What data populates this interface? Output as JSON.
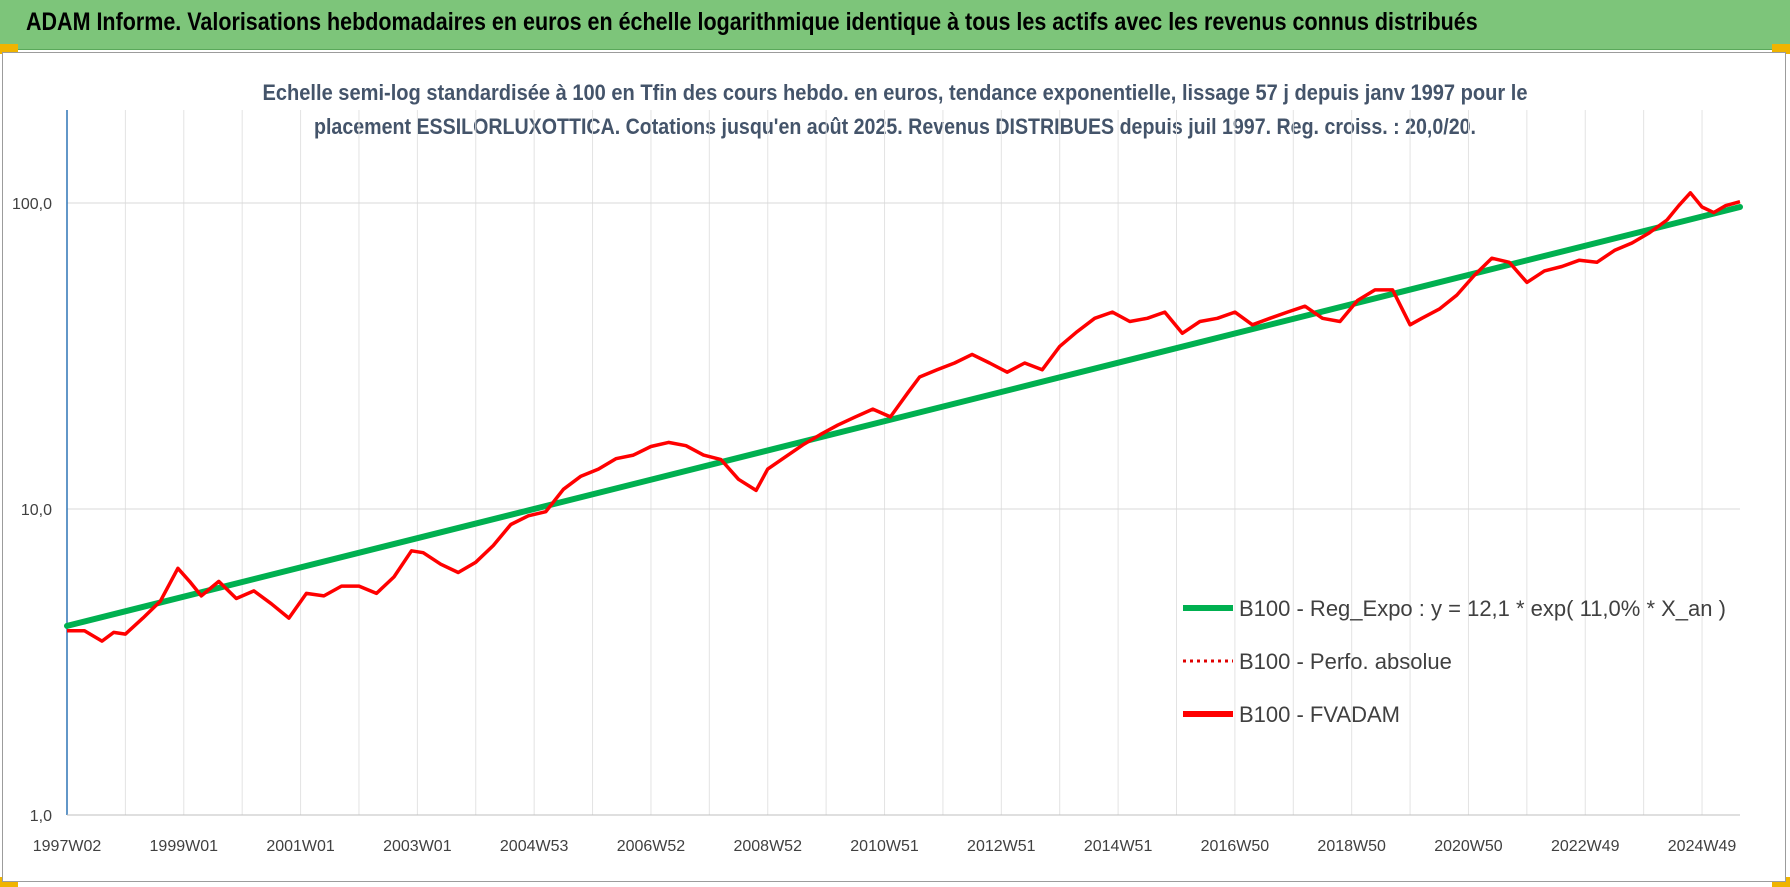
{
  "banner": {
    "title": "ADAM Informe. Valorisations hebdomadaires en euros en échelle logarithmique identique à tous les actifs avec les revenus connus distribués",
    "background": "#7dc57a",
    "corner_color": "#f0b400"
  },
  "chart_data": {
    "type": "line",
    "title_lines": [
      "Echelle semi-log standardisée à 100 en Tfin des cours hebdo. en euros, tendance exponentielle, lissage 57 j depuis janv 1997 pour le",
      "placement ESSILORLUXOTTICA. Cotations jusqu'en août 2025. Revenus DISTRIBUES depuis juil 1997. Reg. croiss. : 20,0/20."
    ],
    "xlabel": "",
    "ylabel": "",
    "y_scale": "log",
    "ylim": [
      1,
      200
    ],
    "y_ticks": [
      {
        "value": 1,
        "label": "1,0"
      },
      {
        "value": 10,
        "label": "10,0"
      },
      {
        "value": 100,
        "label": "100,0"
      }
    ],
    "xlim": [
      1997.0,
      2025.65
    ],
    "x_ticks": [
      {
        "year": 1997.0,
        "label": "1997W02"
      },
      {
        "year": 1999.0,
        "label": "1999W01"
      },
      {
        "year": 2001.0,
        "label": "2001W01"
      },
      {
        "year": 2003.0,
        "label": "2003W01"
      },
      {
        "year": 2005.0,
        "label": "2004W53"
      },
      {
        "year": 2007.0,
        "label": "2006W52"
      },
      {
        "year": 2009.0,
        "label": "2008W52"
      },
      {
        "year": 2011.0,
        "label": "2010W51"
      },
      {
        "year": 2013.0,
        "label": "2012W51"
      },
      {
        "year": 2015.0,
        "label": "2014W51"
      },
      {
        "year": 2017.0,
        "label": "2016W50"
      },
      {
        "year": 2019.0,
        "label": "2018W50"
      },
      {
        "year": 2021.0,
        "label": "2020W50"
      },
      {
        "year": 2023.0,
        "label": "2022W49"
      },
      {
        "year": 2025.0,
        "label": "2024W49"
      }
    ],
    "grid": "vertical",
    "legend_position": "lower-right",
    "series": [
      {
        "name": "B100 - Reg_Expo : y = 12,1 * exp( 11,0% *  X_an )",
        "color": "#00b050",
        "style": "solid",
        "x": [
          1997.0,
          2025.65
        ],
        "y": [
          4.15,
          97.0
        ]
      },
      {
        "name": "B100 - Perfo. absolue",
        "color": "#e00000",
        "style": "dotted",
        "x": [],
        "y": []
      },
      {
        "name": "B100 - FVADAM",
        "color": "#ff0000",
        "style": "solid",
        "x": [
          1997.0,
          1997.3,
          1997.6,
          1997.8,
          1998.0,
          1998.3,
          1998.6,
          1998.9,
          1999.1,
          1999.3,
          1999.6,
          1999.9,
          2000.2,
          2000.5,
          2000.8,
          2001.1,
          2001.4,
          2001.7,
          2002.0,
          2002.3,
          2002.6,
          2002.9,
          2003.1,
          2003.4,
          2003.7,
          2004.0,
          2004.3,
          2004.6,
          2004.9,
          2005.2,
          2005.5,
          2005.8,
          2006.1,
          2006.4,
          2006.7,
          2007.0,
          2007.3,
          2007.6,
          2007.9,
          2008.2,
          2008.5,
          2008.8,
          2009.0,
          2009.3,
          2009.6,
          2009.9,
          2010.2,
          2010.5,
          2010.8,
          2011.1,
          2011.4,
          2011.6,
          2011.9,
          2012.2,
          2012.5,
          2012.8,
          2013.1,
          2013.4,
          2013.7,
          2014.0,
          2014.3,
          2014.6,
          2014.9,
          2015.2,
          2015.5,
          2015.8,
          2016.1,
          2016.4,
          2016.7,
          2017.0,
          2017.3,
          2017.6,
          2017.9,
          2018.2,
          2018.5,
          2018.8,
          2019.1,
          2019.4,
          2019.7,
          2020.0,
          2020.2,
          2020.5,
          2020.8,
          2021.1,
          2021.4,
          2021.7,
          2022.0,
          2022.3,
          2022.6,
          2022.9,
          2023.2,
          2023.5,
          2023.8,
          2024.1,
          2024.4,
          2024.6,
          2024.8,
          2025.0,
          2025.2,
          2025.4,
          2025.65
        ],
        "y": [
          4.0,
          4.0,
          3.7,
          3.95,
          3.9,
          4.4,
          5.0,
          6.4,
          5.8,
          5.2,
          5.8,
          5.1,
          5.4,
          4.9,
          4.4,
          5.3,
          5.2,
          5.6,
          5.6,
          5.3,
          6.0,
          7.3,
          7.2,
          6.6,
          6.2,
          6.7,
          7.6,
          8.9,
          9.5,
          9.8,
          11.6,
          12.8,
          13.5,
          14.6,
          15.0,
          16.0,
          16.5,
          16.1,
          15.0,
          14.5,
          12.5,
          11.5,
          13.5,
          14.8,
          16.2,
          17.5,
          18.8,
          20.0,
          21.2,
          20.0,
          24.0,
          27.0,
          28.5,
          30.0,
          32.0,
          30.0,
          28.0,
          30.0,
          28.5,
          34.0,
          38.0,
          42.0,
          44.0,
          41.0,
          42.0,
          44.0,
          37.5,
          41.0,
          42.0,
          44.0,
          40.0,
          42.0,
          44.0,
          46.0,
          42.0,
          41.0,
          48.0,
          52.0,
          52.0,
          40.0,
          42.0,
          45.0,
          50.0,
          58.0,
          66.0,
          64.0,
          55.0,
          60.0,
          62.0,
          65.0,
          64.0,
          70.0,
          74.0,
          80.0,
          88.0,
          98.0,
          108.0,
          97.0,
          93.0,
          98.0,
          101.0
        ]
      }
    ]
  }
}
